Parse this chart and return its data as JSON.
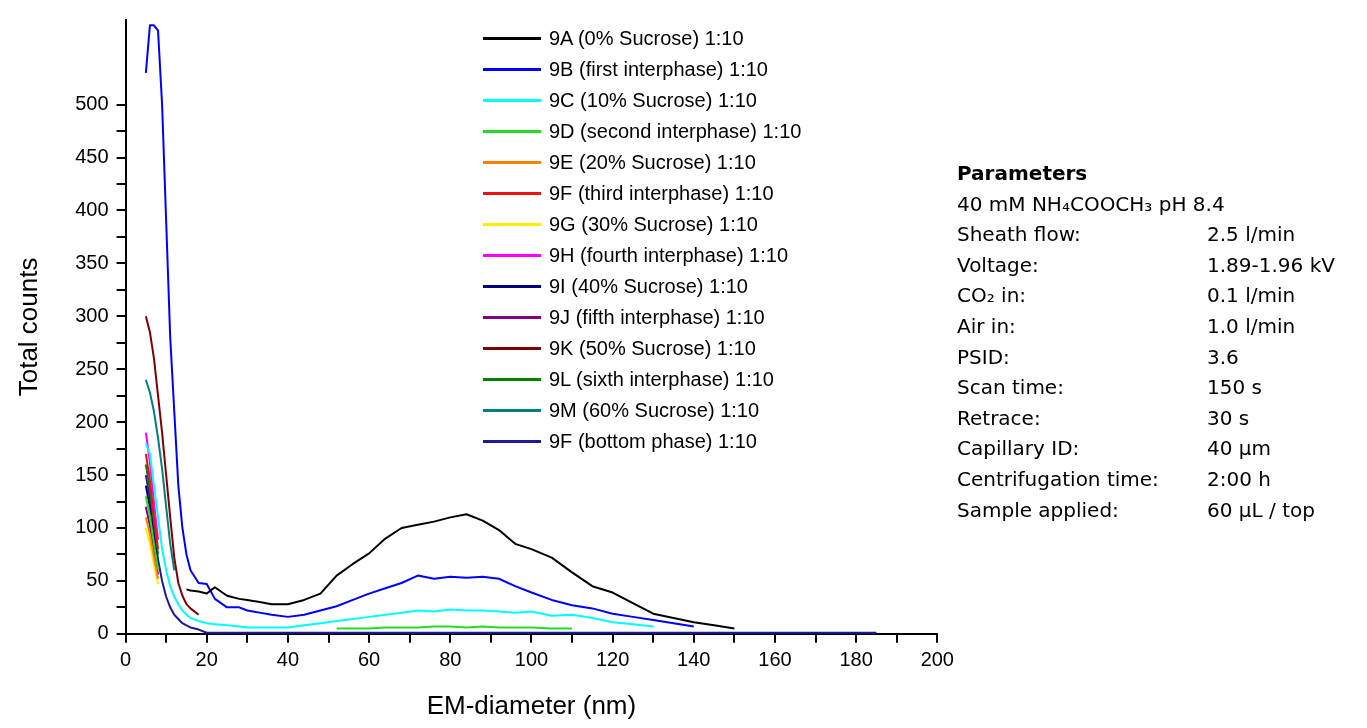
{
  "chart_data": {
    "type": "line",
    "xlabel": "EM-diameter (nm)",
    "ylabel": "Total counts",
    "x": [
      5,
      6,
      7,
      8,
      9,
      10,
      11,
      12,
      13,
      14,
      15,
      16,
      18,
      20,
      22,
      25,
      28,
      30,
      33,
      36,
      40,
      44,
      48,
      52,
      56,
      60,
      64,
      68,
      72,
      76,
      80,
      84,
      88,
      92,
      96,
      100,
      105,
      110,
      115,
      120,
      125,
      130,
      135,
      140,
      145,
      150,
      155,
      160,
      165,
      170,
      175,
      180,
      185
    ],
    "xlim": [
      0,
      200
    ],
    "xticks": [
      0,
      {
        "value": 10,
        "label": null
      },
      20,
      {
        "value": 30,
        "label": null
      },
      40,
      {
        "value": 50,
        "label": null
      },
      60,
      {
        "value": 70,
        "label": null
      },
      80,
      {
        "value": 90,
        "label": null
      },
      100,
      {
        "value": 110,
        "label": null
      },
      120,
      {
        "value": 130,
        "label": null
      },
      140,
      {
        "value": 150,
        "label": null
      },
      160,
      {
        "value": 170,
        "label": null
      },
      180,
      {
        "value": 190,
        "label": null
      },
      200
    ],
    "ylim": [
      0,
      580
    ],
    "yticks": [
      0,
      {
        "value": 25,
        "label": null
      },
      50,
      {
        "value": 75,
        "label": null
      },
      100,
      {
        "value": 125,
        "label": null
      },
      150,
      {
        "value": 175,
        "label": null
      },
      200,
      {
        "value": 225,
        "label": null
      },
      250,
      {
        "value": 275,
        "label": null
      },
      300,
      {
        "value": 325,
        "label": null
      },
      350,
      {
        "value": 375,
        "label": null
      },
      400,
      {
        "value": 425,
        "label": null
      },
      450,
      {
        "value": 475,
        "label": null
      },
      500
    ],
    "grid": false,
    "legend": "top right",
    "marker": "none",
    "line_style": "solid",
    "series": [
      {
        "name": "9A (0% Sucrose) 1:10",
        "color": "#000000",
        "values": [
          null,
          null,
          null,
          null,
          null,
          null,
          null,
          null,
          null,
          null,
          42,
          41,
          40,
          38,
          44,
          36,
          33,
          32,
          30,
          28,
          28,
          32,
          38,
          55,
          66,
          76,
          90,
          100,
          103,
          106,
          110,
          113,
          107,
          98,
          85,
          80,
          72,
          58,
          45,
          39,
          29,
          19,
          15,
          11,
          8,
          5,
          null,
          null,
          null,
          null,
          null,
          null,
          null
        ]
      },
      {
        "name": "9B (first interphase) 1:10",
        "color": "#0000ff",
        "values": [
          530,
          575,
          575,
          570,
          500,
          390,
          280,
          210,
          140,
          100,
          75,
          60,
          48,
          47,
          33,
          25,
          25,
          22,
          20,
          18,
          16,
          18,
          22,
          26,
          32,
          38,
          43,
          48,
          55,
          52,
          54,
          53,
          54,
          52,
          45,
          39,
          32,
          27,
          24,
          19,
          16,
          13,
          10,
          7,
          null,
          null,
          null,
          null,
          null,
          null,
          null,
          null,
          null
        ]
      },
      {
        "name": "9C (10% Sucrose) 1:10",
        "color": "#00ffff",
        "values": [
          180,
          170,
          140,
          110,
          80,
          60,
          45,
          35,
          28,
          22,
          18,
          15,
          12,
          10,
          9,
          8,
          7,
          6,
          6,
          6,
          6,
          8,
          10,
          12,
          14,
          16,
          18,
          20,
          22,
          21,
          23,
          22,
          22,
          21,
          20,
          21,
          17,
          18,
          15,
          11,
          9,
          7,
          null,
          null,
          null,
          null,
          null,
          null,
          null,
          null,
          null,
          null,
          null
        ]
      },
      {
        "name": "9D (second interphase) 1:10",
        "color": "#22dd22",
        "values": [
          130,
          111,
          85,
          61,
          null,
          null,
          null,
          null,
          null,
          null,
          null,
          null,
          null,
          null,
          null,
          null,
          null,
          null,
          null,
          null,
          null,
          null,
          null,
          5,
          5,
          5,
          6,
          6,
          6,
          7,
          7,
          6,
          7,
          6,
          6,
          6,
          5,
          5,
          null,
          null,
          null,
          null,
          null,
          null,
          null,
          null,
          null,
          null,
          null,
          null,
          null,
          null,
          null
        ]
      },
      {
        "name": "9E (20% Sucrose) 1:10",
        "color": "#ff8000",
        "values": [
          110,
          94,
          72,
          52,
          null,
          null,
          null,
          null,
          null,
          null,
          null,
          null,
          null,
          null,
          null,
          null,
          null,
          null,
          null,
          null,
          null,
          null,
          null,
          null,
          null,
          null,
          null,
          null,
          null,
          null,
          null,
          null,
          null,
          null,
          null,
          null,
          null,
          null,
          null,
          null,
          null,
          null,
          null,
          null,
          null,
          null,
          null,
          null,
          null,
          null,
          null,
          null,
          null
        ]
      },
      {
        "name": "9F (third interphase) 1:10",
        "color": "#ee1111",
        "values": [
          170,
          145,
          110,
          80,
          null,
          null,
          null,
          null,
          null,
          null,
          null,
          null,
          null,
          null,
          null,
          null,
          null,
          null,
          null,
          null,
          null,
          null,
          null,
          null,
          null,
          null,
          null,
          null,
          null,
          null,
          null,
          null,
          null,
          null,
          null,
          null,
          null,
          null,
          null,
          null,
          null,
          null,
          null,
          null,
          null,
          null,
          null,
          null,
          null,
          null,
          null,
          null,
          null
        ]
      },
      {
        "name": "9G (30% Sucrose) 1:10",
        "color": "#ffee00",
        "values": [
          100,
          85,
          65,
          47,
          null,
          null,
          null,
          null,
          null,
          null,
          null,
          null,
          null,
          null,
          null,
          null,
          null,
          null,
          null,
          null,
          null,
          null,
          null,
          null,
          null,
          null,
          null,
          null,
          null,
          null,
          null,
          null,
          null,
          null,
          null,
          null,
          null,
          null,
          null,
          null,
          null,
          null,
          null,
          null,
          null,
          null,
          null,
          null,
          null,
          null,
          null,
          null,
          null
        ]
      },
      {
        "name": "9H (fourth interphase) 1:10",
        "color": "#ff00ff",
        "values": [
          190,
          162,
          124,
          89,
          null,
          null,
          null,
          null,
          null,
          null,
          null,
          null,
          null,
          null,
          null,
          null,
          null,
          null,
          null,
          null,
          null,
          null,
          null,
          null,
          null,
          null,
          null,
          null,
          null,
          null,
          null,
          null,
          null,
          null,
          null,
          null,
          null,
          null,
          null,
          null,
          null,
          null,
          null,
          null,
          null,
          null,
          null,
          null,
          null,
          null,
          null,
          null,
          null
        ]
      },
      {
        "name": "9I (40% Sucrose) 1:10",
        "color": "#000080",
        "values": [
          140,
          119,
          91,
          66,
          null,
          null,
          null,
          null,
          null,
          null,
          null,
          null,
          null,
          null,
          null,
          null,
          null,
          null,
          null,
          null,
          null,
          null,
          null,
          null,
          null,
          null,
          null,
          null,
          null,
          null,
          null,
          null,
          null,
          null,
          null,
          null,
          null,
          null,
          null,
          null,
          null,
          null,
          null,
          null,
          null,
          null,
          null,
          null,
          null,
          null,
          null,
          null,
          null
        ]
      },
      {
        "name": "9J (fifth interphase) 1:10",
        "color": "#800080",
        "values": [
          120,
          102,
          78,
          56,
          null,
          null,
          null,
          null,
          null,
          null,
          null,
          null,
          null,
          null,
          null,
          null,
          null,
          null,
          null,
          null,
          null,
          null,
          null,
          null,
          null,
          null,
          null,
          null,
          null,
          null,
          null,
          null,
          null,
          null,
          null,
          null,
          null,
          null,
          null,
          null,
          null,
          null,
          null,
          null,
          null,
          null,
          null,
          null,
          null,
          null,
          null,
          null,
          null
        ]
      },
      {
        "name": "9K (50% Sucrose) 1:10",
        "color": "#800000",
        "values": [
          300,
          285,
          260,
          225,
          190,
          150,
          110,
          72,
          48,
          36,
          28,
          24,
          18,
          null,
          null,
          null,
          null,
          null,
          null,
          null,
          null,
          null,
          null,
          null,
          null,
          null,
          null,
          null,
          null,
          null,
          null,
          null,
          null,
          null,
          null,
          null,
          null,
          null,
          null,
          null,
          null,
          null,
          null,
          null,
          null,
          null,
          null,
          null,
          null,
          null,
          null,
          null,
          null
        ]
      },
      {
        "name": "9L (sixth interphase) 1:10",
        "color": "#008000",
        "values": [
          160,
          136,
          104,
          75,
          null,
          null,
          null,
          null,
          null,
          null,
          null,
          null,
          null,
          null,
          null,
          null,
          null,
          null,
          null,
          null,
          null,
          null,
          null,
          null,
          null,
          null,
          null,
          null,
          null,
          null,
          null,
          null,
          null,
          null,
          null,
          null,
          null,
          null,
          null,
          null,
          null,
          null,
          null,
          null,
          null,
          null,
          null,
          null,
          null,
          null,
          null,
          null,
          null
        ]
      },
      {
        "name": "9M (60% Sucrose) 1:10",
        "color": "#008080",
        "values": [
          240,
          228,
          210,
          185,
          156,
          120,
          85,
          60,
          null,
          null,
          null,
          null,
          null,
          null,
          null,
          null,
          null,
          null,
          null,
          null,
          null,
          null,
          null,
          null,
          null,
          null,
          null,
          null,
          null,
          null,
          null,
          null,
          null,
          null,
          null,
          null,
          null,
          null,
          null,
          null,
          null,
          null,
          null,
          null,
          null,
          null,
          null,
          null,
          null,
          null,
          null,
          null,
          null
        ]
      },
      {
        "name": "9F (bottom phase) 1:10",
        "color": "#1a1a9a",
        "values": [
          150,
          128,
          98,
          70,
          50,
          35,
          25,
          18,
          14,
          10,
          8,
          6,
          4,
          1,
          1,
          1,
          1,
          1,
          1,
          1,
          1,
          1,
          1,
          1,
          1,
          1,
          1,
          1,
          1,
          1,
          1,
          1,
          1,
          1,
          1,
          1,
          1,
          1,
          1,
          1,
          1,
          1,
          1,
          1,
          1,
          1,
          1,
          1,
          1,
          1,
          1,
          1,
          1
        ]
      }
    ],
    "annotations": [
      "Parameters",
      "40 mM NH₄COOCH₃ pH 8.4",
      "Sheath flow:",
      "2.5 l/min",
      "Voltage:",
      "1.89-1.96 kV",
      "CO₂ in:",
      "0.1 l/min",
      "Air in:",
      "1.0 l/min",
      "PSID:",
      "3.6",
      "Scan time:",
      "150 s",
      "Retrace:",
      "30 s",
      "Capillary ID:",
      "40 µm",
      "Centrifugation time:",
      "2:00 h",
      "Sample applied:",
      "60 µL / top"
    ]
  }
}
